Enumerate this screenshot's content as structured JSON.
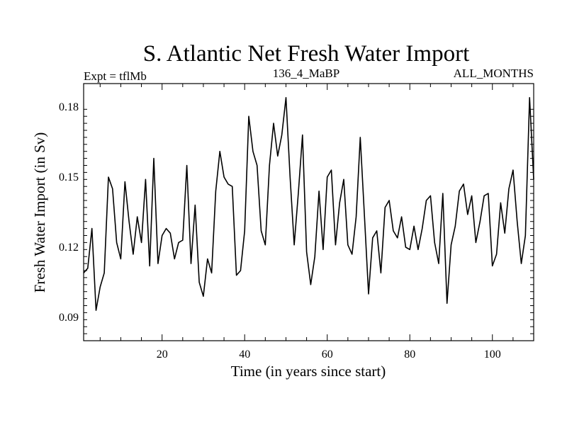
{
  "chart_data": {
    "type": "line",
    "title": "S. Atlantic Net Fresh Water Import",
    "subtitle_left": "Expt = tflMb",
    "subtitle_center": "136_4_MaBP",
    "subtitle_right": "ALL_MONTHS",
    "xlabel": "Time (in years since start)",
    "ylabel": "Fresh Water Import (in Sv)",
    "xlim": [
      1,
      110
    ],
    "ylim": [
      0.08,
      0.19
    ],
    "xticks": [
      20,
      40,
      60,
      80,
      100
    ],
    "yticks": [
      0.09,
      0.12,
      0.15,
      0.18
    ],
    "ytick_labels": [
      "0.09",
      "0.12",
      "0.15",
      "0.18"
    ],
    "grid": false,
    "series": [
      {
        "name": "Net Fresh Water Import",
        "x": [
          1,
          2,
          3,
          4,
          5,
          6,
          7,
          8,
          9,
          10,
          11,
          12,
          13,
          14,
          15,
          16,
          17,
          18,
          19,
          20,
          21,
          22,
          23,
          24,
          25,
          26,
          27,
          28,
          29,
          30,
          31,
          32,
          33,
          34,
          35,
          36,
          37,
          38,
          39,
          40,
          41,
          42,
          43,
          44,
          45,
          46,
          47,
          48,
          49,
          50,
          51,
          52,
          53,
          54,
          55,
          56,
          57,
          58,
          59,
          60,
          61,
          62,
          63,
          64,
          65,
          66,
          67,
          68,
          69,
          70,
          71,
          72,
          73,
          74,
          75,
          76,
          77,
          78,
          79,
          80,
          81,
          82,
          83,
          84,
          85,
          86,
          87,
          88,
          89,
          90,
          91,
          92,
          93,
          94,
          95,
          96,
          97,
          98,
          99,
          100,
          101,
          102,
          103,
          104,
          105,
          106,
          107,
          108,
          109,
          110
        ],
        "values": [
          0.109,
          0.111,
          0.128,
          0.093,
          0.103,
          0.109,
          0.15,
          0.145,
          0.122,
          0.115,
          0.148,
          0.131,
          0.117,
          0.133,
          0.122,
          0.149,
          0.112,
          0.158,
          0.113,
          0.125,
          0.128,
          0.126,
          0.115,
          0.122,
          0.123,
          0.155,
          0.113,
          0.138,
          0.105,
          0.099,
          0.115,
          0.109,
          0.144,
          0.161,
          0.15,
          0.147,
          0.146,
          0.108,
          0.11,
          0.127,
          0.176,
          0.161,
          0.155,
          0.127,
          0.121,
          0.155,
          0.173,
          0.159,
          0.168,
          0.184,
          0.15,
          0.121,
          0.143,
          0.168,
          0.118,
          0.104,
          0.116,
          0.144,
          0.119,
          0.15,
          0.153,
          0.121,
          0.139,
          0.149,
          0.121,
          0.117,
          0.133,
          0.167,
          0.134,
          0.1,
          0.124,
          0.127,
          0.109,
          0.137,
          0.14,
          0.127,
          0.124,
          0.133,
          0.12,
          0.119,
          0.129,
          0.119,
          0.128,
          0.14,
          0.142,
          0.122,
          0.113,
          0.143,
          0.096,
          0.121,
          0.129,
          0.144,
          0.147,
          0.134,
          0.142,
          0.122,
          0.131,
          0.142,
          0.143,
          0.112,
          0.117,
          0.139,
          0.126,
          0.145,
          0.153,
          0.131,
          0.113,
          0.125,
          0.184,
          0.149
        ]
      }
    ]
  }
}
